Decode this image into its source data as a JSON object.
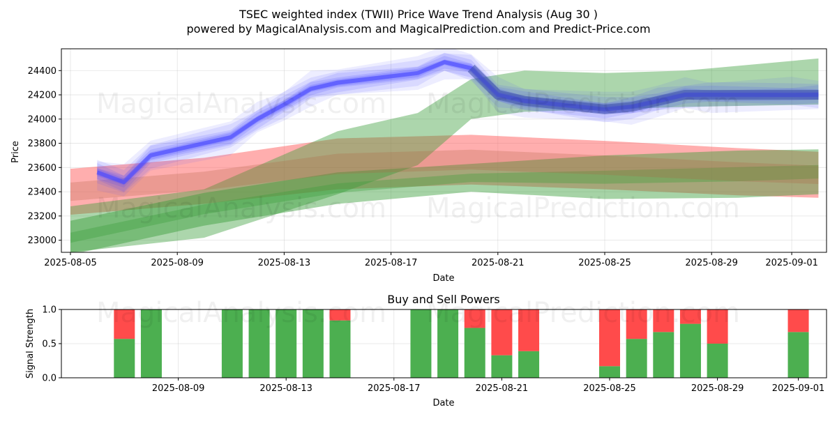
{
  "title_line1": "TSEC weighted index (TWII) Price Wave Trend Analysis (Aug 30 )",
  "title_line2": "powered by MagicalAnalysis.com and MagicalPrediction.com and Predict-Price.com",
  "watermarks": [
    "MagicalAnalysis.com",
    "MagicalPrediction.com"
  ],
  "colors": {
    "wave": "#4a4aff",
    "wave_dark": "#3a4fa8",
    "band_red": "#ff6b6b",
    "band_green": "#3a9e3a",
    "buy": "#4caf50",
    "sell": "#ff4b4b"
  },
  "chart_data": [
    {
      "type": "area",
      "title": "",
      "xlabel": "Date",
      "ylabel": "Price",
      "xlim": [
        "2025-08-05",
        "2025-09-02"
      ],
      "ylim": [
        22900,
        24580
      ],
      "xticks": [
        "2025-08-05",
        "2025-08-09",
        "2025-08-13",
        "2025-08-17",
        "2025-08-21",
        "2025-08-25",
        "2025-08-29",
        "2025-09-01"
      ],
      "yticks": [
        23000,
        23200,
        23400,
        23600,
        23800,
        24000,
        24200,
        24400
      ],
      "grid": true,
      "series": [
        {
          "name": "price wave (center)",
          "x": [
            "2025-08-06",
            "2025-08-07",
            "2025-08-08",
            "2025-08-11",
            "2025-08-12",
            "2025-08-13",
            "2025-08-14",
            "2025-08-15",
            "2025-08-18",
            "2025-08-19",
            "2025-08-20",
            "2025-08-21",
            "2025-08-22",
            "2025-08-25",
            "2025-08-26",
            "2025-08-27",
            "2025-08-28",
            "2025-08-29",
            "2025-09-01",
            "2025-09-02"
          ],
          "values": [
            23560,
            23480,
            23700,
            23850,
            24000,
            24120,
            24250,
            24300,
            24380,
            24470,
            24420,
            24200,
            24150,
            24080,
            24100,
            24150,
            24200,
            24200,
            24200,
            24200
          ]
        },
        {
          "name": "red band",
          "x": [
            "2025-08-05",
            "2025-08-10",
            "2025-08-15",
            "2025-08-20",
            "2025-08-25",
            "2025-08-30",
            "2025-09-02"
          ],
          "upper": [
            23590,
            23680,
            23840,
            23870,
            23820,
            23760,
            23730
          ],
          "lower": [
            23210,
            23300,
            23420,
            23460,
            23420,
            23370,
            23350
          ]
        },
        {
          "name": "green band (upper)",
          "x": [
            "2025-08-05",
            "2025-08-10",
            "2025-08-15",
            "2025-08-18",
            "2025-08-20",
            "2025-08-22",
            "2025-08-25",
            "2025-08-28",
            "2025-09-02"
          ],
          "upper": [
            23280,
            23420,
            23900,
            24050,
            24330,
            24400,
            24380,
            24400,
            24500
          ],
          "lower": [
            22900,
            23020,
            23380,
            23620,
            24000,
            24060,
            24080,
            24100,
            24120
          ]
        },
        {
          "name": "green band (lower)",
          "x": [
            "2025-08-05",
            "2025-08-10",
            "2025-08-15",
            "2025-08-20",
            "2025-08-25",
            "2025-08-30",
            "2025-09-02"
          ],
          "upper": [
            23160,
            23390,
            23560,
            23630,
            23700,
            23740,
            23750
          ],
          "lower": [
            22880,
            23120,
            23300,
            23400,
            23340,
            23350,
            23380
          ]
        }
      ]
    },
    {
      "type": "bar",
      "title": "Buy and Sell Powers",
      "xlabel": "Date",
      "ylabel": "Signal Strength",
      "ylim": [
        0,
        1
      ],
      "yticks": [
        "0.0",
        "0.5",
        "1.0"
      ],
      "xticks": [
        "2025-08-09",
        "2025-08-13",
        "2025-08-17",
        "2025-08-21",
        "2025-08-25",
        "2025-08-29",
        "2025-09-01"
      ],
      "xlim": [
        "2025-08-05",
        "2025-09-02"
      ],
      "grid": true,
      "categories": [
        "2025-08-07",
        "2025-08-08",
        "2025-08-11",
        "2025-08-12",
        "2025-08-13",
        "2025-08-14",
        "2025-08-15",
        "2025-08-18",
        "2025-08-19",
        "2025-08-20",
        "2025-08-21",
        "2025-08-22",
        "2025-08-25",
        "2025-08-26",
        "2025-08-27",
        "2025-08-28",
        "2025-08-29",
        "2025-09-01"
      ],
      "series": [
        {
          "name": "Buy",
          "values": [
            0.57,
            1.0,
            1.0,
            1.0,
            1.0,
            1.0,
            0.84,
            1.0,
            1.0,
            0.73,
            0.33,
            0.39,
            0.17,
            0.57,
            0.67,
            0.79,
            0.5,
            0.67
          ]
        },
        {
          "name": "Sell",
          "values": [
            0.43,
            0.0,
            0.0,
            0.0,
            0.0,
            0.0,
            0.16,
            0.0,
            0.0,
            0.27,
            0.67,
            0.61,
            0.83,
            0.43,
            0.33,
            0.21,
            0.5,
            0.33
          ]
        }
      ]
    }
  ]
}
